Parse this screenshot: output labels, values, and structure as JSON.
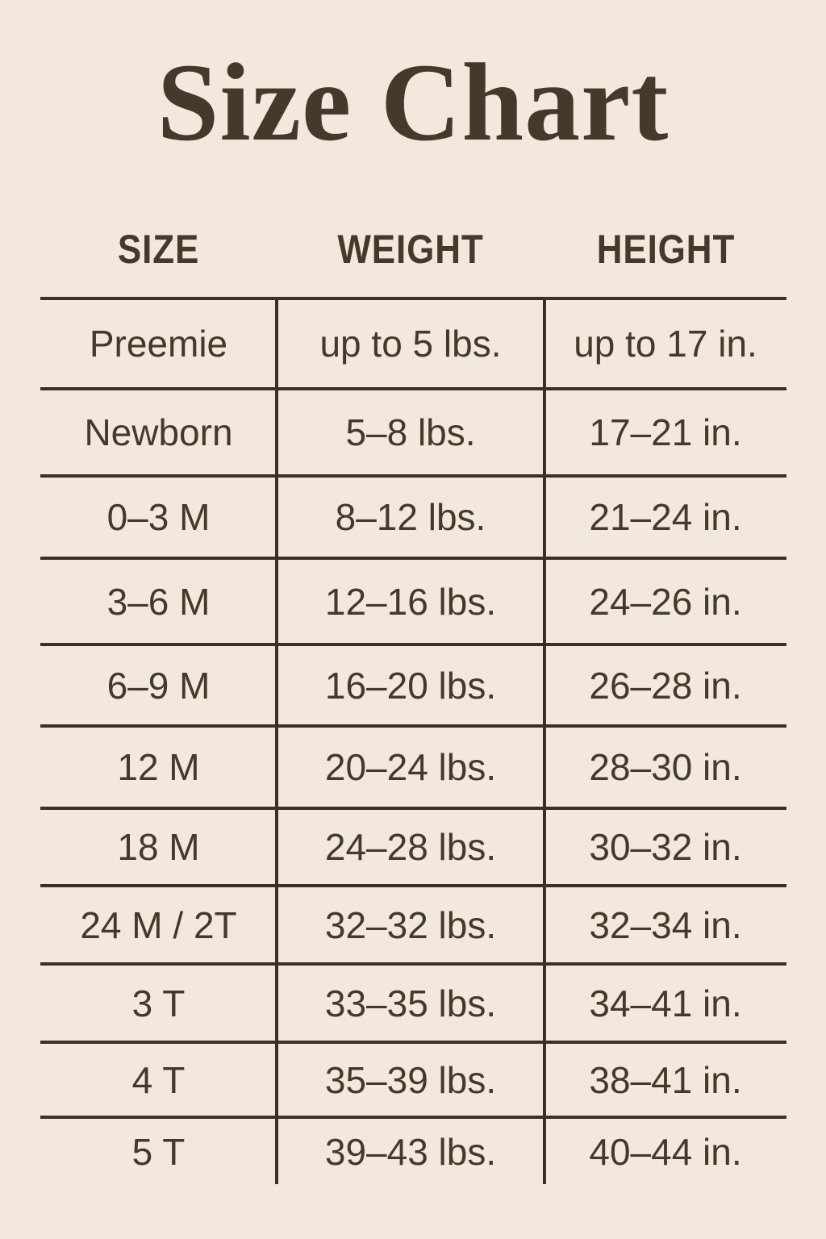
{
  "colors": {
    "background": "#f2e9dc",
    "ink": "#46382a",
    "line": "#3d2f22"
  },
  "title": "Size Chart",
  "table": {
    "headers": [
      "SIZE",
      "WEIGHT",
      "HEIGHT"
    ],
    "rows": [
      {
        "size": "Preemie",
        "weight": "up to 5 lbs.",
        "height": "up to 17 in."
      },
      {
        "size": "Newborn",
        "weight": "5–8 lbs.",
        "height": "17–21 in."
      },
      {
        "size": "0–3 M",
        "weight": "8–12 lbs.",
        "height": "21–24 in."
      },
      {
        "size": "3–6 M",
        "weight": "12–16 lbs.",
        "height": "24–26 in."
      },
      {
        "size": "6–9 M",
        "weight": "16–20 lbs.",
        "height": "26–28 in."
      },
      {
        "size": "12 M",
        "weight": "20–24 lbs.",
        "height": "28–30 in."
      },
      {
        "size": "18 M",
        "weight": "24–28 lbs.",
        "height": "30–32 in."
      },
      {
        "size": "24 M / 2T",
        "weight": "32–32 lbs.",
        "height": "32–34 in."
      },
      {
        "size": "3 T",
        "weight": "33–35 lbs.",
        "height": "34–41 in."
      },
      {
        "size": "4 T",
        "weight": "35–39 lbs.",
        "height": "38–41 in."
      },
      {
        "size": "5 T",
        "weight": "39–43 lbs.",
        "height": "40–44 in."
      }
    ]
  }
}
